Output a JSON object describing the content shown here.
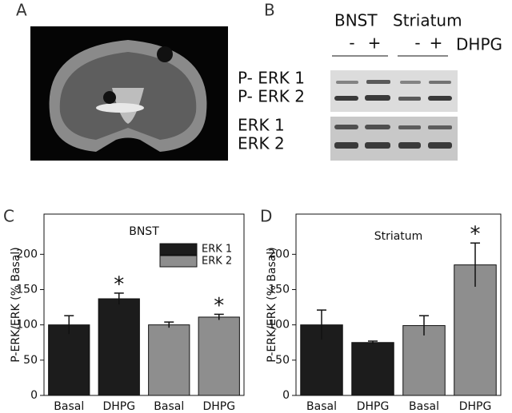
{
  "panel_labels": [
    "A",
    "B",
    "C",
    "D"
  ],
  "blot": {
    "header": [
      "BNST",
      "Striatum"
    ],
    "lanes": [
      "-",
      "+",
      "-",
      "+"
    ],
    "treatment": "DHPG",
    "rows": [
      "P- ERK 1",
      "P- ERK 2",
      "ERK 1",
      "ERK 2"
    ]
  },
  "chart_data": [
    {
      "type": "bar",
      "title": "BNST",
      "y_label": "P-ERK/ERK (% Basal)",
      "categories": [
        "Basal",
        "DHPG",
        "Basal",
        "DHPG"
      ],
      "series": [
        {
          "name": "ERK 1",
          "color": "#1c1c1c",
          "values": [
            100,
            137,
            null,
            null
          ],
          "errors": [
            13,
            8,
            null,
            null
          ],
          "markers": [
            null,
            "*",
            null,
            null
          ]
        },
        {
          "name": "ERK 2",
          "color": "#8e8e8e",
          "values": [
            null,
            null,
            100,
            111
          ],
          "errors": [
            null,
            null,
            4,
            4
          ],
          "markers": [
            null,
            null,
            null,
            "*"
          ]
        }
      ],
      "ylim": [
        0,
        257
      ],
      "yticks": [
        0,
        50,
        100,
        150,
        200
      ],
      "legend": "upper right"
    },
    {
      "type": "bar",
      "title": "Striatum",
      "y_label": "P-ERK/ERK (% Basal)",
      "categories": [
        "Basal",
        "DHPG",
        "Basal",
        "DHPG"
      ],
      "series": [
        {
          "color": "#1c1c1c",
          "values": [
            100,
            75,
            null,
            null
          ],
          "errors": [
            21,
            2,
            null,
            null
          ],
          "markers": [
            null,
            null,
            null,
            null
          ]
        },
        {
          "color": "#8e8e8e",
          "values": [
            null,
            null,
            99,
            185
          ],
          "errors": [
            null,
            null,
            14,
            31
          ],
          "markers": [
            null,
            null,
            null,
            "*"
          ]
        }
      ],
      "ylim": [
        0,
        257
      ],
      "yticks": [
        0,
        50,
        100,
        150,
        200
      ],
      "legend": null
    }
  ]
}
